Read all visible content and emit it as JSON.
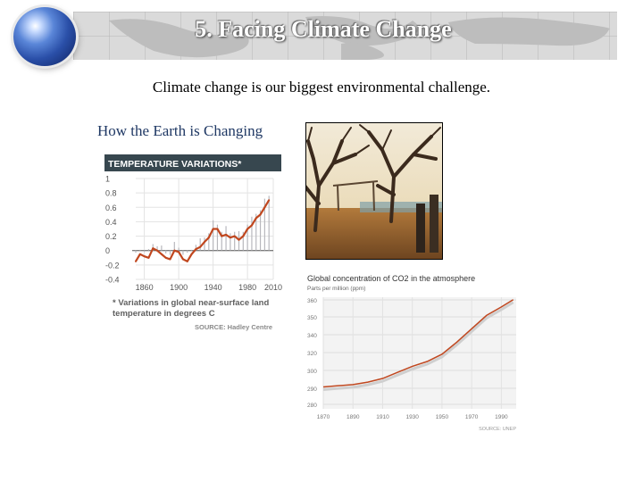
{
  "slide": {
    "title": "5. Facing Climate Change",
    "subtitle": "Climate change is our biggest environmental challenge.",
    "section_label": "How the Earth is Changing"
  },
  "icons": {
    "globe": "globe-icon"
  },
  "photo": {
    "subject": "drought-dead-trees-photo"
  },
  "temperature_figure": {
    "caption": "* Variations in global near-surface land temperature in degrees C",
    "source": "SOURCE: Hadley Centre"
  },
  "chart_data": [
    {
      "type": "line",
      "title": "TEMPERATURE VARIATIONS*",
      "xlabel": "",
      "ylabel": "",
      "x_ticks": [
        1860,
        1900,
        1940,
        1980,
        2010
      ],
      "y_ticks": [
        1.0,
        0.8,
        0.6,
        0.4,
        0.2,
        0,
        -0.2,
        -0.4
      ],
      "xlim": [
        1850,
        2010
      ],
      "ylim": [
        -0.4,
        1.0
      ],
      "grid": true,
      "colors": {
        "header": "#37474f",
        "line": "#c0471f",
        "bars": "#b8b8bd"
      },
      "series": [
        {
          "x": [
            1850,
            1855,
            1860,
            1865,
            1870,
            1875,
            1880,
            1885,
            1890,
            1895,
            1900,
            1905,
            1910,
            1915,
            1920,
            1925,
            1930,
            1935,
            1940,
            1945,
            1950,
            1955,
            1960,
            1965,
            1970,
            1975,
            1980,
            1985,
            1990,
            1995,
            2000,
            2005
          ],
          "values": [
            -0.15,
            -0.05,
            -0.08,
            -0.1,
            0.03,
            0.0,
            -0.05,
            -0.1,
            -0.12,
            0.0,
            -0.02,
            -0.12,
            -0.15,
            -0.05,
            0.02,
            0.05,
            0.12,
            0.18,
            0.3,
            0.3,
            0.2,
            0.22,
            0.18,
            0.2,
            0.15,
            0.2,
            0.3,
            0.35,
            0.45,
            0.5,
            0.6,
            0.7
          ]
        }
      ]
    },
    {
      "type": "line",
      "title": "Global concentration of CO2 in the atmosphere",
      "subtitle": "Parts per million (ppm)",
      "source": "SOURCE: UNEP",
      "xlabel": "",
      "ylabel": "",
      "x_ticks": [
        1870,
        1890,
        1910,
        1930,
        1950,
        1970,
        1990
      ],
      "y_ticks": [
        360,
        350,
        340,
        320,
        300,
        290,
        280
      ],
      "xlim": [
        1870,
        2000
      ],
      "ylim": [
        270,
        362
      ],
      "grid": true,
      "colors": {
        "line": "#c0471f"
      },
      "series": [
        {
          "x": [
            1870,
            1880,
            1890,
            1900,
            1910,
            1920,
            1930,
            1940,
            1950,
            1960,
            1970,
            1980,
            1990,
            1998
          ],
          "values": [
            288,
            289,
            290,
            292,
            295,
            300,
            305,
            309,
            315,
            325,
            336,
            347,
            354,
            360
          ]
        }
      ]
    }
  ]
}
